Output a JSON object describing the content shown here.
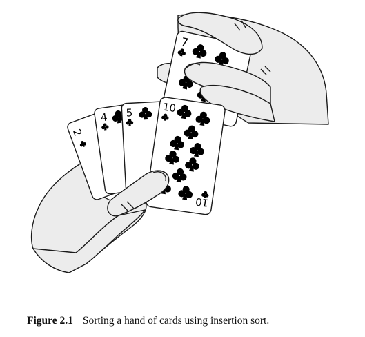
{
  "figure": {
    "cards": {
      "left_2": {
        "rank": "2"
      },
      "left_4": {
        "rank": "4"
      },
      "left_5": {
        "rank": "5"
      },
      "front_10": {
        "rank": "10",
        "rank_bottom": "10"
      },
      "top_7": {
        "rank": "7"
      }
    },
    "suit_glyph": "♣",
    "colors": {
      "skin": "#ececec",
      "line": "#1a1a1a",
      "card": "#ffffff",
      "pip": "#000000"
    }
  },
  "caption": {
    "label": "Figure 2.1",
    "text": "Sorting a hand of cards using insertion sort."
  }
}
